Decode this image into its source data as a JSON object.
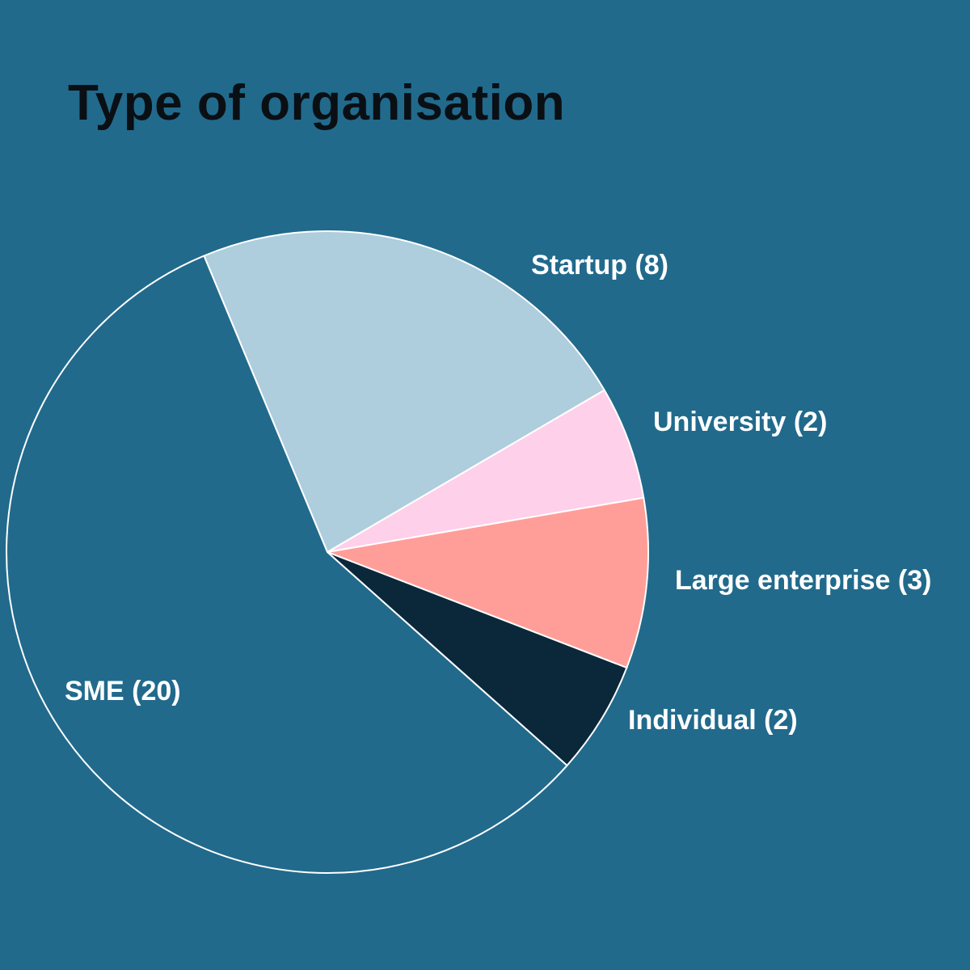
{
  "chart_data": {
    "type": "pie",
    "title": "Type of organisation",
    "slices": [
      {
        "category": "Startup",
        "value": 8,
        "label": "Startup (8)",
        "color": "#aecddd"
      },
      {
        "category": "University",
        "value": 2,
        "label": "University (2)",
        "color": "#ffd0ea"
      },
      {
        "category": "Large enterprise",
        "value": 3,
        "label": "Large enterprise (3)",
        "color": "#ff9e98"
      },
      {
        "category": "Individual",
        "value": 2,
        "label": "Individual (2)",
        "color": "#0b283b"
      },
      {
        "category": "SME",
        "value": 20,
        "label": "SME (20)",
        "color": "#216a8c"
      }
    ],
    "slice_border_color": "#ffffff",
    "label_color": "#ffffff",
    "legend": "none"
  },
  "colors": {
    "background": "#216a8c",
    "title": "#0a0f14"
  }
}
